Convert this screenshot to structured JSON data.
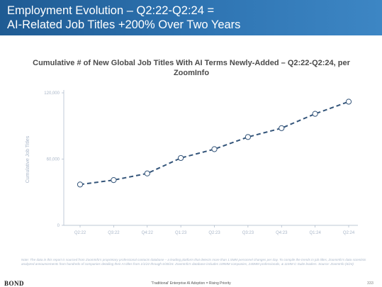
{
  "slide": {
    "title_line1": "Employment Evolution – Q2:22-Q2:24 =",
    "title_line2": "AI-Related Job Titles +200% Over Two Years",
    "note": "Note: The data in this report is sourced from ZoomInfo's proprietary professional contacts database – a leading platform that detects more than 1.5MM personnel changes per day. To compile the trends in job titles, ZoomInfo's data scientists analyzed announcements from hundreds of companies detailing their AI titles from 1/1/22 through 6/30/24. ZoomInfo's database includes 109MM companies, 240MM professionals, & 11MM C-Suite leaders. Source: ZoomInfo (6/24)",
    "footer_logo": "BOND",
    "footer_caption": "'Traditional' Enterprise AI Adoption = Rising Priority",
    "page_number": "333"
  },
  "colors": {
    "banner": "#2f75b3",
    "line": "#34557a",
    "marker_stroke": "#34557a",
    "marker_fill": "#ffffff",
    "axis_text": "#a9b6c8",
    "axis_line": "#a9b6c8"
  },
  "chart_data": {
    "type": "line",
    "title": "Cumulative # of New Global Job Titles With AI Terms Newly-Added – Q2:22-Q2:24, per ZoomInfo",
    "ylabel": "Cumulative Job Titles",
    "xlabel": "",
    "categories": [
      "Q2:22",
      "Q3:22",
      "Q4:22",
      "Q1:23",
      "Q2:23",
      "Q3:23",
      "Q4:23",
      "Q1:24",
      "Q2:24"
    ],
    "y_tick_labels": [
      "0",
      "60,000",
      "120,000"
    ],
    "ylim": [
      0,
      120000
    ],
    "yticks": [
      0,
      60000,
      120000
    ],
    "grid": false,
    "line_style": "dashed",
    "markers": "hollow-circle",
    "series": [
      {
        "values": [
          37000,
          41000,
          47000,
          61000,
          69000,
          80000,
          88000,
          101000,
          112000
        ]
      }
    ]
  }
}
